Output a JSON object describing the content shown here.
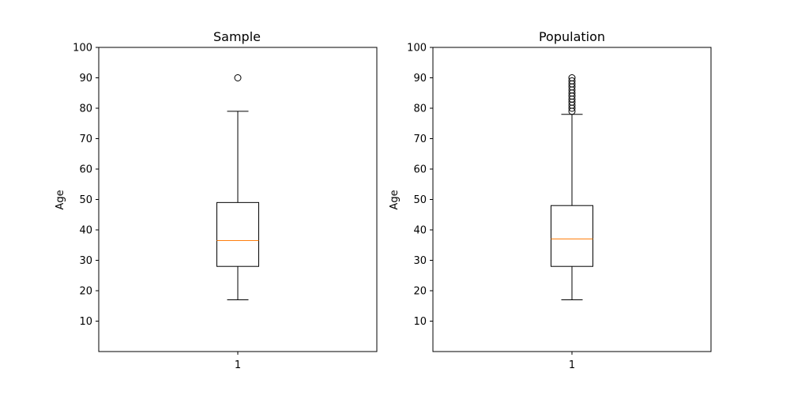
{
  "chart_data": [
    {
      "type": "box",
      "title": "Sample",
      "xlabel": "",
      "ylabel": "Age",
      "ylim": [
        0,
        100
      ],
      "yticks": [
        10,
        20,
        30,
        40,
        50,
        60,
        70,
        80,
        90,
        100
      ],
      "categories": [
        "1"
      ],
      "box": {
        "whisker_low": 17,
        "q1": 28,
        "median": 36.5,
        "q3": 49,
        "whisker_high": 79,
        "outliers": [
          90
        ]
      },
      "colors": {
        "box": "#000000",
        "median": "#ff7f0e"
      }
    },
    {
      "type": "box",
      "title": "Population",
      "xlabel": "",
      "ylabel": "Age",
      "ylim": [
        0,
        100
      ],
      "yticks": [
        10,
        20,
        30,
        40,
        50,
        60,
        70,
        80,
        90,
        100
      ],
      "categories": [
        "1"
      ],
      "box": {
        "whisker_low": 17,
        "q1": 28,
        "median": 37,
        "q3": 48,
        "whisker_high": 78,
        "outliers": [
          79,
          80,
          81,
          82,
          83,
          84,
          85,
          86,
          87,
          88,
          89,
          90
        ]
      },
      "colors": {
        "box": "#000000",
        "median": "#ff7f0e"
      }
    }
  ]
}
